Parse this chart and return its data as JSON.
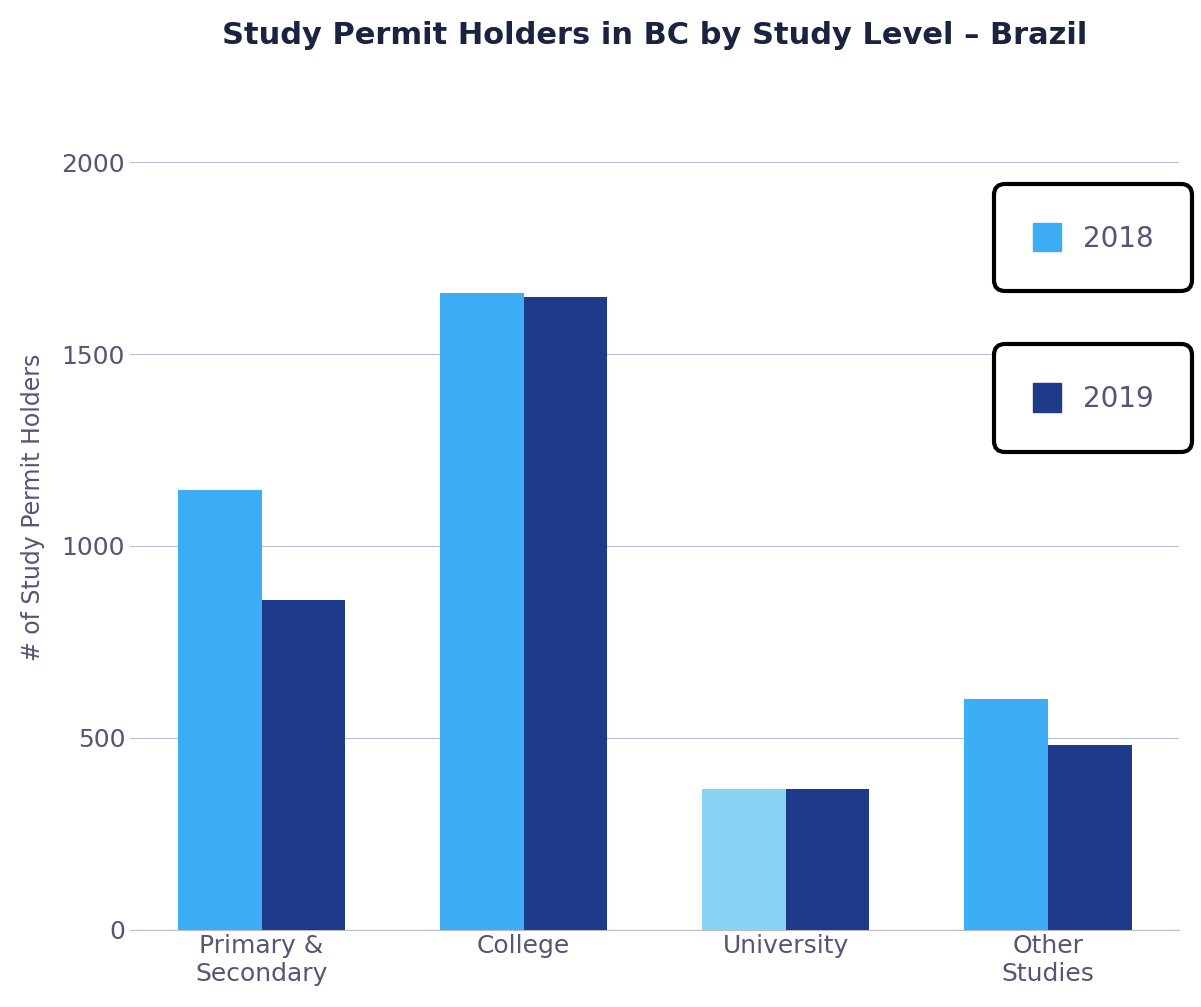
{
  "title": "Study Permit Holders in BC by Study Level – Brazil",
  "ylabel": "# of Study Permit Holders",
  "categories": [
    "Primary &\nSecondary",
    "College",
    "University",
    "Other\nStudies"
  ],
  "values_2018": [
    1145,
    1660,
    365,
    600
  ],
  "values_2019": [
    860,
    1650,
    365,
    480
  ],
  "color_2018": "#3daef5",
  "color_2019": "#1e3a8a",
  "color_university_2018": "#87d4f5",
  "ylim": [
    0,
    2200
  ],
  "yticks": [
    0,
    500,
    1000,
    1500,
    2000
  ],
  "background_color": "#ffffff",
  "grid_color": "#8899bb",
  "title_color": "#1a2340",
  "label_color": "#555577",
  "bar_width": 0.32,
  "legend_labels": [
    "2018",
    "2019"
  ],
  "legend_fontsize": 20,
  "title_fontsize": 22,
  "axis_label_fontsize": 17,
  "tick_fontsize": 18
}
